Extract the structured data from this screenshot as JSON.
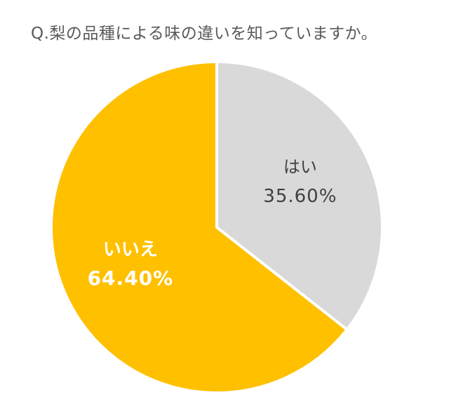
{
  "chart_data": {
    "type": "pie",
    "title": "Q.梨の品種による味の違いを知っていますか。",
    "slices": [
      {
        "label": "はい",
        "value": 35.6,
        "value_text": "35.60%",
        "color": "#d9d9d9",
        "text_color": "#404040"
      },
      {
        "label": "いいえ",
        "value": 64.4,
        "value_text": "64.40%",
        "color": "#ffc000",
        "text_color": "#ffffff"
      }
    ],
    "start": "top, clockwise",
    "legend": "none"
  }
}
